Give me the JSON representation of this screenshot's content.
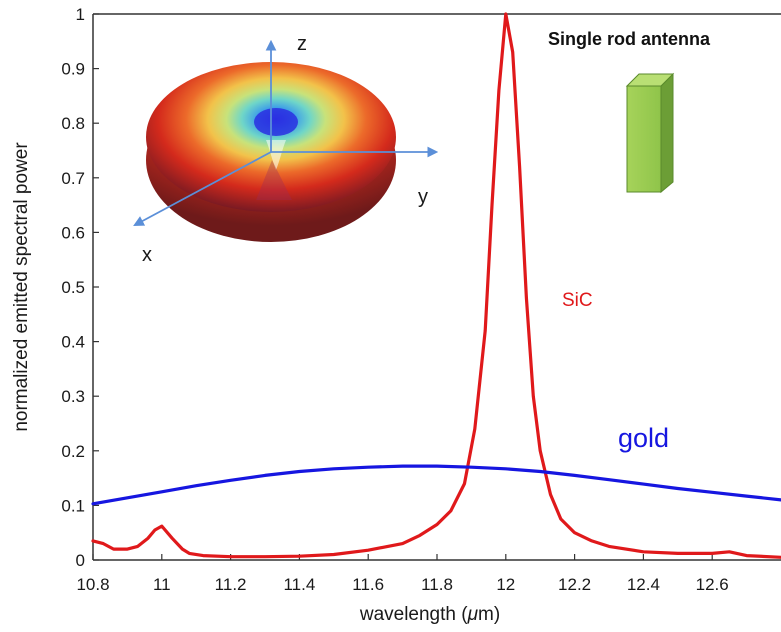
{
  "chart_data": {
    "type": "line",
    "title": "Single rod antenna",
    "xlabel_prefix": "wavelength (",
    "xlabel_mu": "μ",
    "xlabel_suffix": "m)",
    "ylabel": "normalized emitted spectral power",
    "xlim": [
      10.8,
      12.8
    ],
    "ylim": [
      0,
      1
    ],
    "x_ticks": [
      "10.8",
      "11",
      "11.2",
      "11.4",
      "11.6",
      "11.8",
      "12",
      "12.2",
      "12.4",
      "12.6"
    ],
    "x_tick_values": [
      10.8,
      11.0,
      11.2,
      11.4,
      11.6,
      11.8,
      12.0,
      12.2,
      12.4,
      12.6
    ],
    "y_ticks": [
      "0",
      "0.1",
      "0.2",
      "0.3",
      "0.4",
      "0.5",
      "0.6",
      "0.7",
      "0.8",
      "0.9",
      "1"
    ],
    "y_tick_values": [
      0,
      0.1,
      0.2,
      0.3,
      0.4,
      0.5,
      0.6,
      0.7,
      0.8,
      0.9,
      1.0
    ],
    "grid": false,
    "series": [
      {
        "name": "SiC",
        "color": "#e0191b",
        "x": [
          10.8,
          10.83,
          10.86,
          10.9,
          10.93,
          10.96,
          10.98,
          11.0,
          11.03,
          11.06,
          11.08,
          11.12,
          11.2,
          11.3,
          11.4,
          11.5,
          11.6,
          11.7,
          11.75,
          11.8,
          11.84,
          11.88,
          11.91,
          11.94,
          11.96,
          11.98,
          12.0,
          12.02,
          12.04,
          12.06,
          12.08,
          12.1,
          12.13,
          12.16,
          12.2,
          12.25,
          12.3,
          12.4,
          12.5,
          12.6,
          12.65,
          12.7,
          12.8
        ],
        "y": [
          0.035,
          0.03,
          0.02,
          0.02,
          0.025,
          0.04,
          0.055,
          0.062,
          0.04,
          0.02,
          0.012,
          0.008,
          0.006,
          0.006,
          0.007,
          0.01,
          0.018,
          0.03,
          0.045,
          0.065,
          0.09,
          0.14,
          0.24,
          0.42,
          0.65,
          0.86,
          1.0,
          0.93,
          0.72,
          0.48,
          0.3,
          0.2,
          0.12,
          0.075,
          0.05,
          0.035,
          0.025,
          0.015,
          0.012,
          0.012,
          0.015,
          0.008,
          0.005
        ]
      },
      {
        "name": "gold",
        "color": "#1616e0",
        "x": [
          10.8,
          10.9,
          11.0,
          11.1,
          11.2,
          11.3,
          11.4,
          11.5,
          11.6,
          11.7,
          11.8,
          11.9,
          12.0,
          12.1,
          12.2,
          12.3,
          12.4,
          12.5,
          12.6,
          12.7,
          12.8
        ],
        "y": [
          0.103,
          0.114,
          0.125,
          0.136,
          0.146,
          0.155,
          0.162,
          0.167,
          0.17,
          0.172,
          0.172,
          0.17,
          0.167,
          0.162,
          0.155,
          0.147,
          0.139,
          0.131,
          0.124,
          0.117,
          0.11
        ]
      }
    ],
    "inset_axes": [
      "x",
      "y",
      "z"
    ]
  }
}
